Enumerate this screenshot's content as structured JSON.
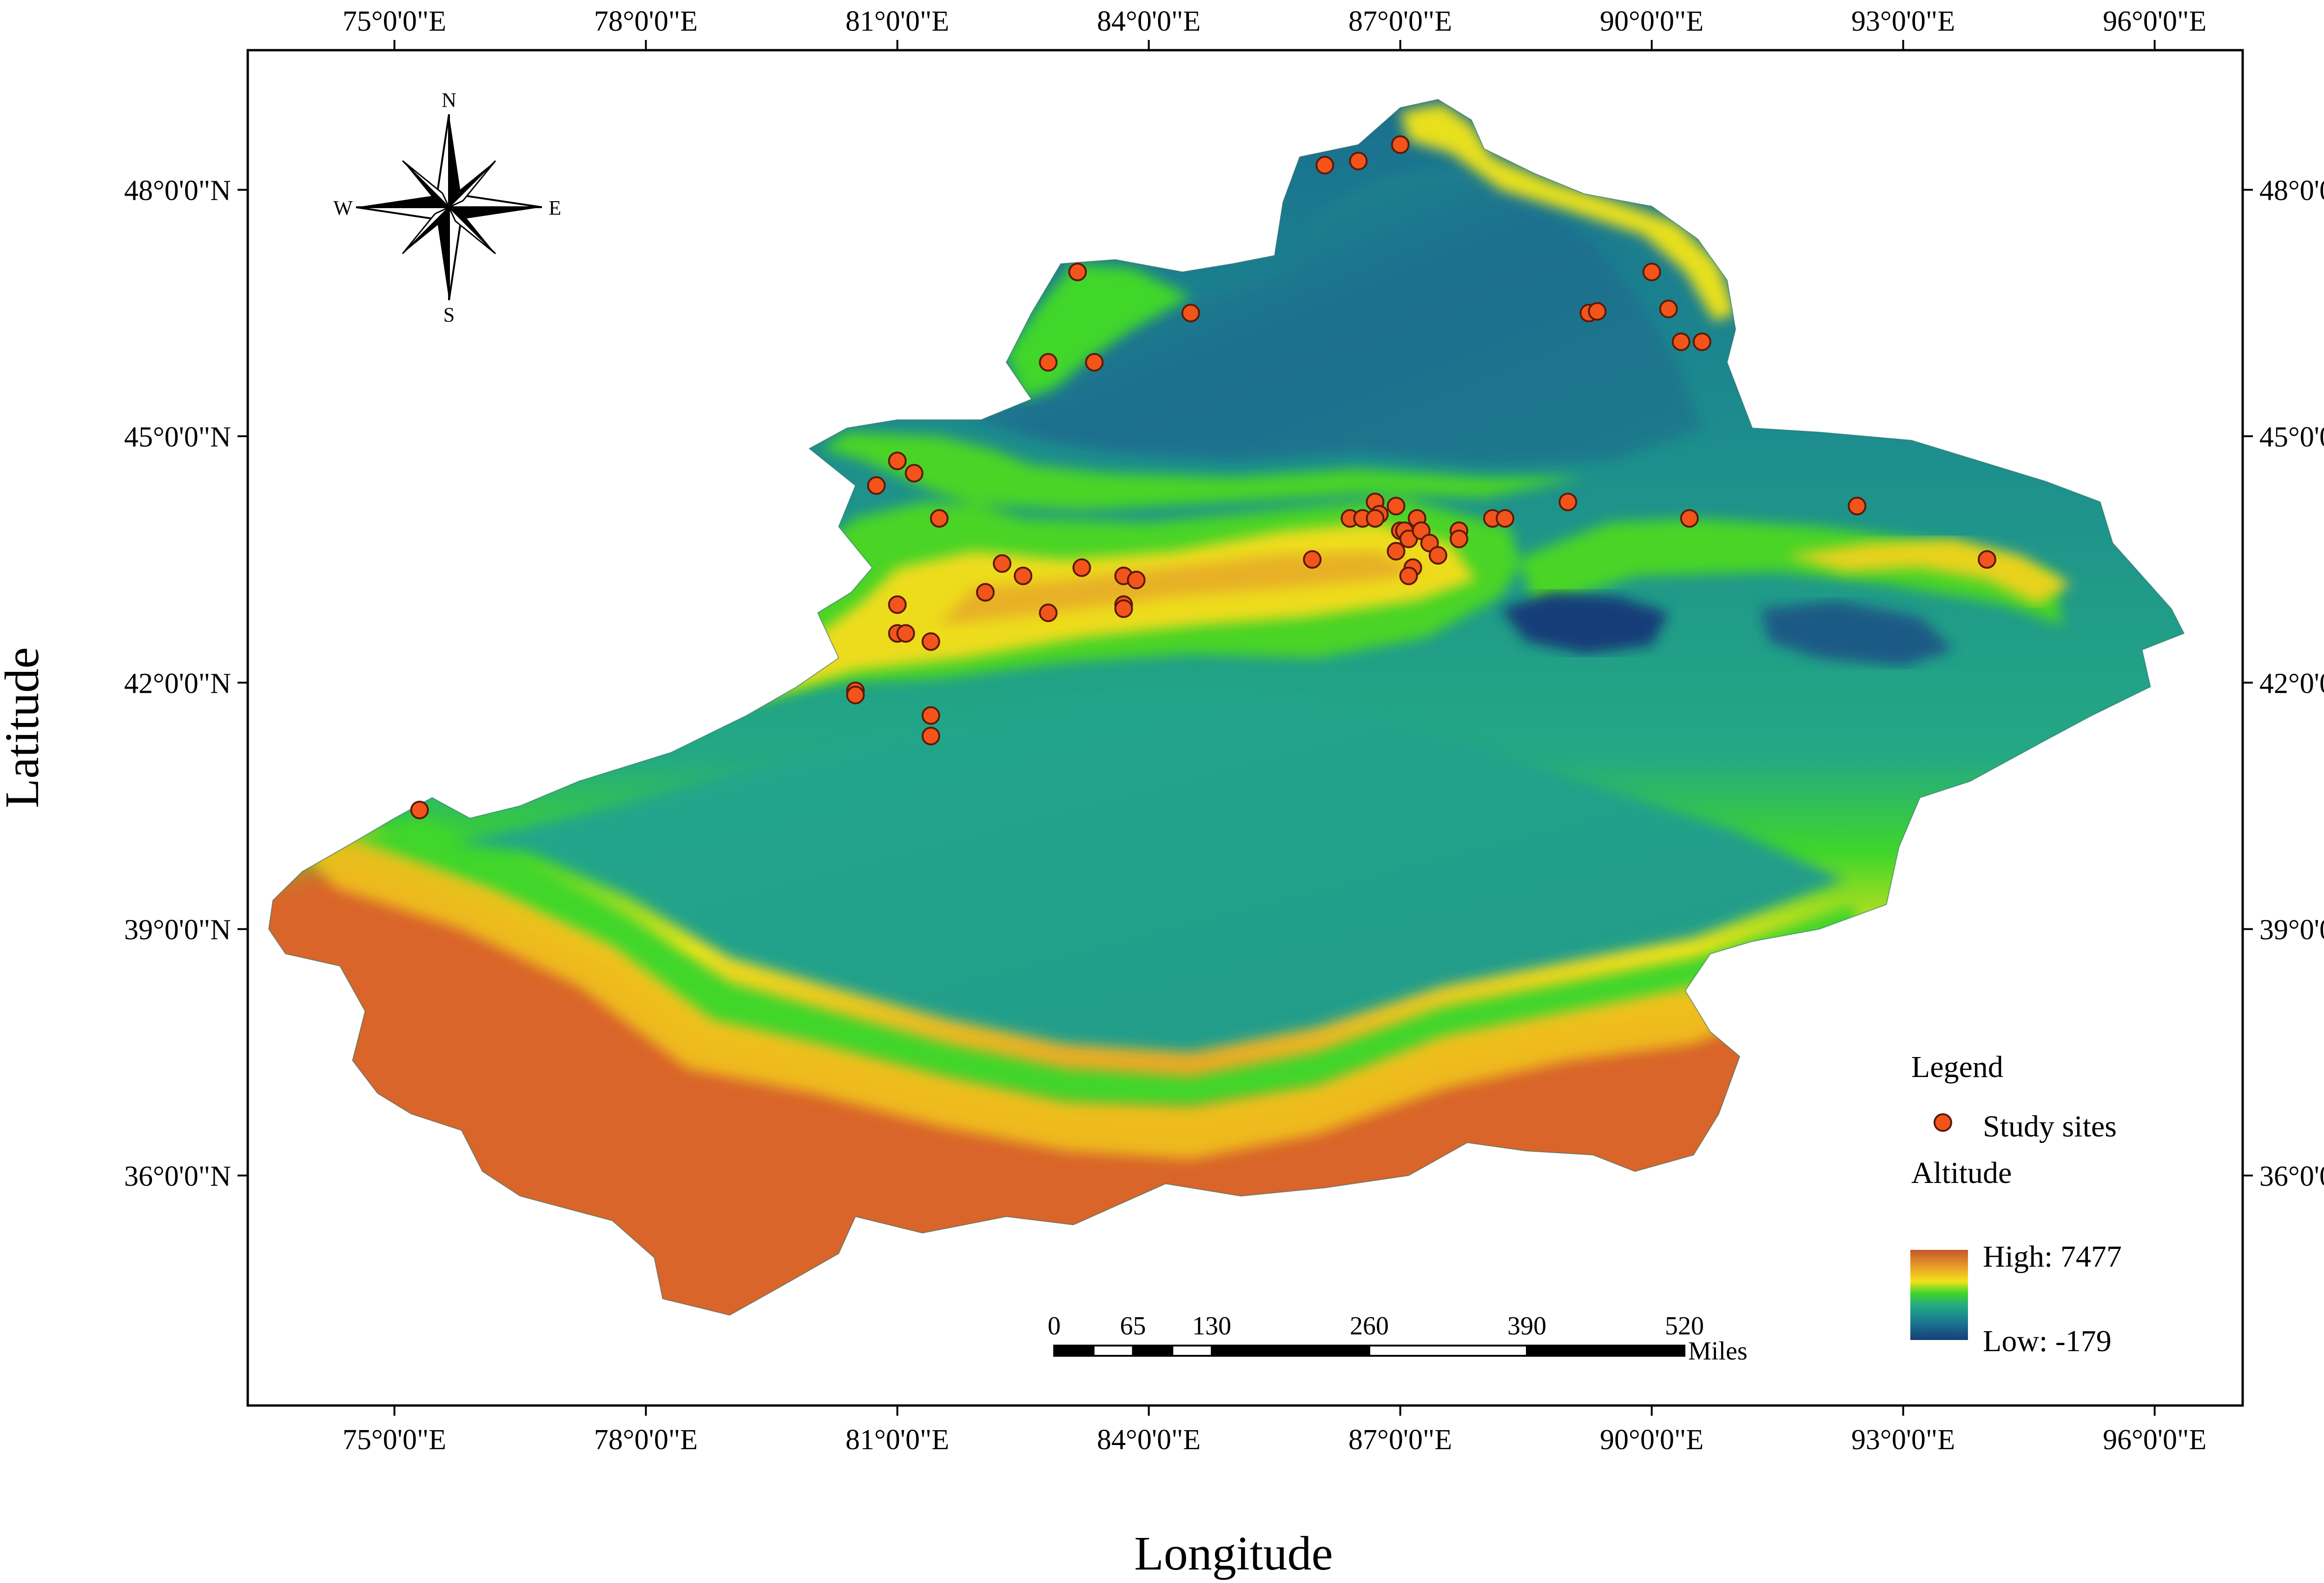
{
  "axes": {
    "x_title": "Longitude",
    "y_title": "Latitude",
    "x_ticks": [
      {
        "value": 75,
        "label": "75°0'0\"E"
      },
      {
        "value": 78,
        "label": "78°0'0\"E"
      },
      {
        "value": 81,
        "label": "81°0'0\"E"
      },
      {
        "value": 84,
        "label": "84°0'0\"E"
      },
      {
        "value": 87,
        "label": "87°0'0\"E"
      },
      {
        "value": 90,
        "label": "90°0'0\"E"
      },
      {
        "value": 93,
        "label": "93°0'0\"E"
      },
      {
        "value": 96,
        "label": "96°0'0\"E"
      }
    ],
    "y_ticks": [
      {
        "value": 48,
        "label": "48°0'0\"N"
      },
      {
        "value": 45,
        "label": "45°0'0\"N"
      },
      {
        "value": 42,
        "label": "42°0'0\"N"
      },
      {
        "value": 39,
        "label": "39°0'0\"N"
      },
      {
        "value": 36,
        "label": "36°0'0\"N"
      }
    ],
    "x_range": [
      73.25,
      97.05
    ],
    "y_range": [
      33.2,
      49.7
    ]
  },
  "legend": {
    "title": "Legend",
    "sites_label": "Study sites",
    "altitude_title": "Altitude",
    "high_label": "High: 7477",
    "low_label": "Low: -179"
  },
  "colors": {
    "site_fill": "#f2541b",
    "site_stroke": "#5a1a08",
    "ramp": [
      "#c2582a",
      "#e89a2a",
      "#f3e21a",
      "#3fd62a",
      "#23a884",
      "#1a7891",
      "#153e78"
    ]
  },
  "compass": {
    "n": "N",
    "s": "S",
    "e": "E",
    "w": "W"
  },
  "scale_bar": {
    "labels": [
      "0",
      "65",
      "130",
      "260",
      "390",
      "520"
    ],
    "unit": "Miles"
  },
  "sites": [
    [
      86.1,
      48.3
    ],
    [
      86.5,
      48.35
    ],
    [
      87.0,
      48.55
    ],
    [
      83.15,
      47.0
    ],
    [
      84.5,
      46.5
    ],
    [
      82.8,
      45.9
    ],
    [
      83.35,
      45.9
    ],
    [
      89.25,
      46.5
    ],
    [
      89.35,
      46.52
    ],
    [
      90.0,
      47.0
    ],
    [
      90.2,
      46.55
    ],
    [
      90.35,
      46.15
    ],
    [
      90.6,
      46.15
    ],
    [
      81.0,
      44.7
    ],
    [
      81.2,
      44.55
    ],
    [
      80.75,
      44.4
    ],
    [
      81.5,
      44.0
    ],
    [
      82.25,
      43.45
    ],
    [
      82.5,
      43.3
    ],
    [
      83.2,
      43.4
    ],
    [
      82.05,
      43.1
    ],
    [
      82.8,
      42.85
    ],
    [
      83.7,
      43.3
    ],
    [
      83.85,
      43.25
    ],
    [
      83.7,
      42.95
    ],
    [
      83.7,
      42.9
    ],
    [
      81.0,
      42.95
    ],
    [
      81.0,
      42.6
    ],
    [
      81.1,
      42.6
    ],
    [
      81.4,
      42.5
    ],
    [
      80.5,
      41.9
    ],
    [
      80.5,
      41.85
    ],
    [
      81.4,
      41.6
    ],
    [
      81.4,
      41.35
    ],
    [
      75.3,
      40.45
    ],
    [
      85.95,
      43.5
    ],
    [
      86.4,
      44.0
    ],
    [
      86.55,
      44.0
    ],
    [
      86.7,
      44.2
    ],
    [
      86.75,
      44.05
    ],
    [
      86.7,
      44.0
    ],
    [
      86.95,
      44.15
    ],
    [
      87.0,
      43.85
    ],
    [
      87.05,
      43.85
    ],
    [
      87.1,
      43.75
    ],
    [
      86.95,
      43.6
    ],
    [
      87.2,
      44.0
    ],
    [
      87.25,
      43.85
    ],
    [
      87.35,
      43.7
    ],
    [
      87.45,
      43.55
    ],
    [
      87.15,
      43.4
    ],
    [
      87.1,
      43.3
    ],
    [
      87.7,
      43.85
    ],
    [
      87.7,
      43.75
    ],
    [
      88.1,
      44.0
    ],
    [
      88.25,
      44.0
    ],
    [
      89.0,
      44.2
    ],
    [
      90.45,
      44.0
    ],
    [
      92.45,
      44.15
    ],
    [
      94.0,
      43.5
    ]
  ]
}
